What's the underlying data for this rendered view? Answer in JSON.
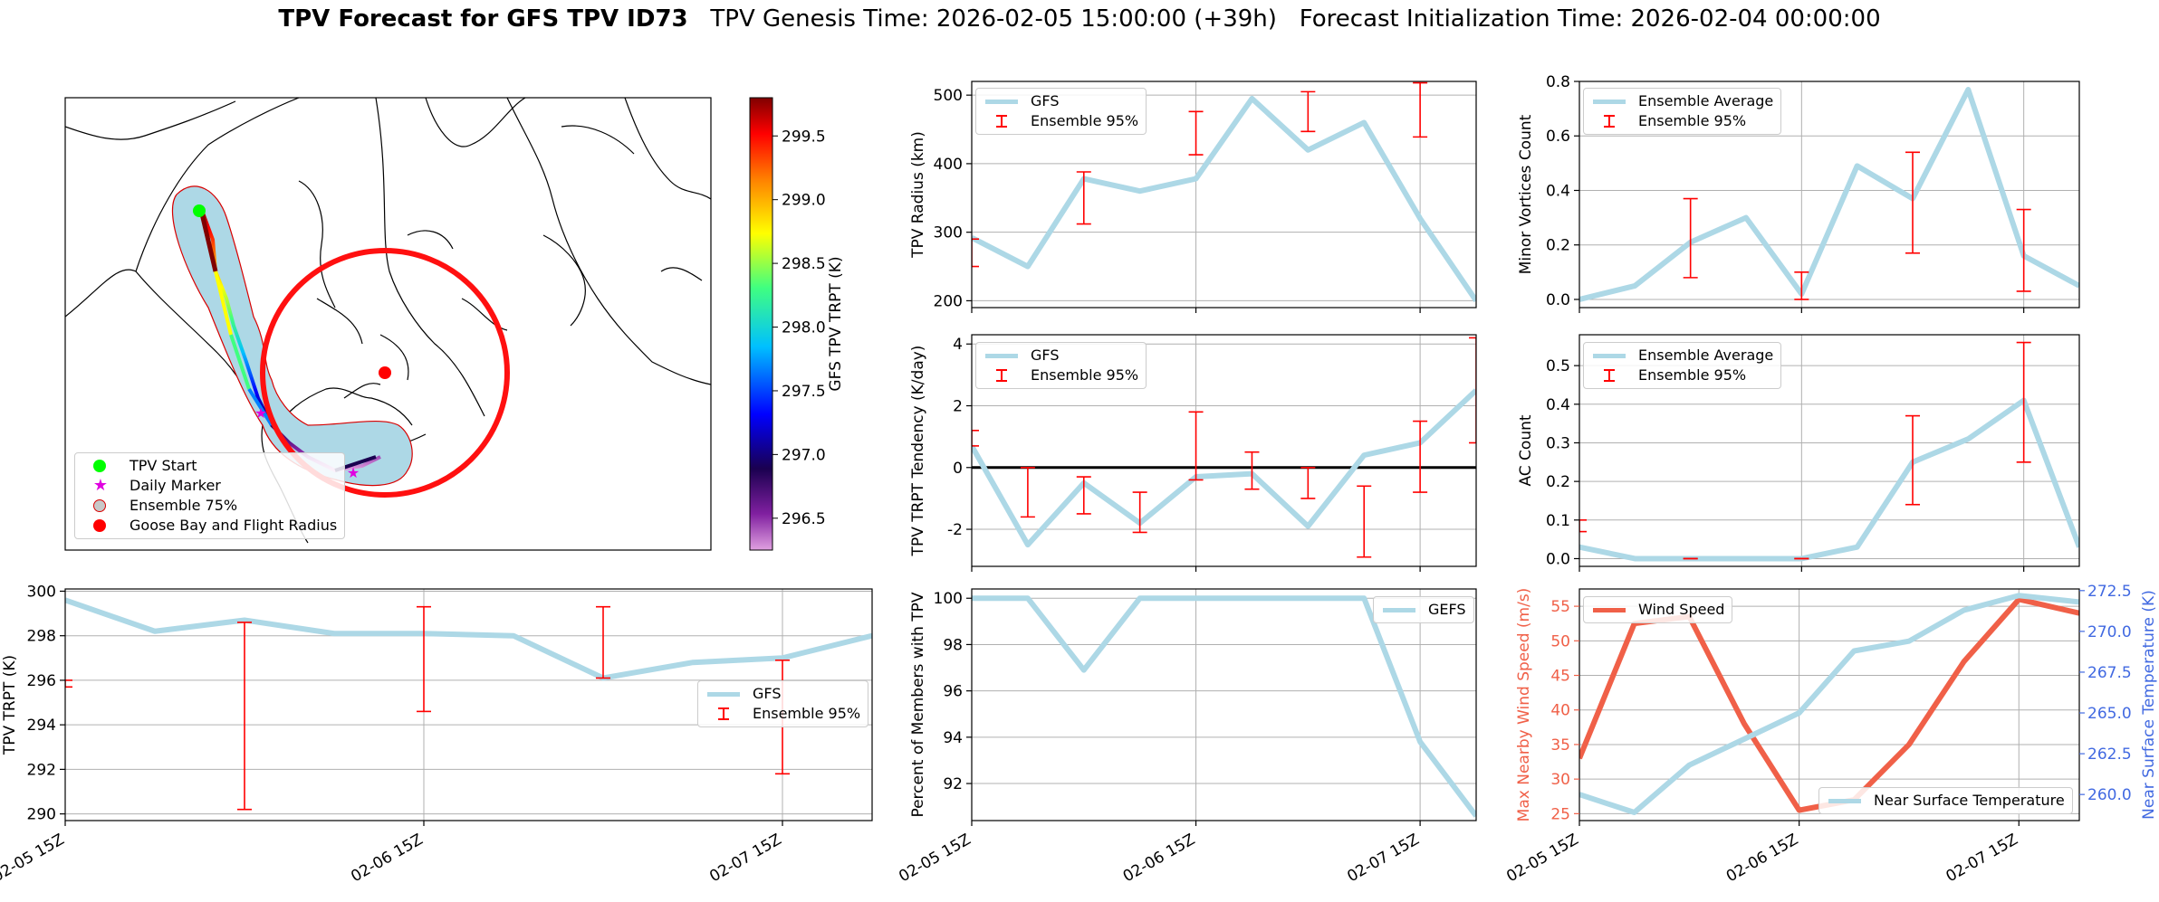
{
  "title": {
    "bold": "TPV Forecast for GFS TPV ID73",
    "genesis": "TPV Genesis Time: 2026-02-05 15:00:00 (+39h)",
    "init": "Forecast Initialization Time: 2026-02-04 00:00:00"
  },
  "colors": {
    "gfs": "#add8e6",
    "err": "#ff0000",
    "wind": "#f06048",
    "temp": "#add8e6",
    "temp_axis": "#4169e1"
  },
  "map": {
    "colorbar": {
      "label": "GFS TPV TRPT (K)",
      "ticks": [
        "296.5",
        "297.0",
        "297.5",
        "298.0",
        "298.5",
        "299.0",
        "299.5"
      ],
      "min": 296.25,
      "max": 299.8
    },
    "legend": [
      "TPV Start",
      "Daily Marker",
      "Ensemble 75%",
      "Goose Bay and Flight Radius"
    ]
  },
  "chart_data": [
    {
      "id": "radius",
      "type": "line",
      "ylabel": "TPV Radius (km)",
      "xlim": [
        0,
        9
      ],
      "ylim": [
        190,
        520
      ],
      "yticks": [
        200,
        300,
        400,
        500
      ],
      "xticks": [
        0,
        4,
        8
      ],
      "xticklabels": [],
      "series": [
        {
          "name": "GFS",
          "x": [
            0,
            1,
            2,
            3,
            4,
            5,
            6,
            7,
            8,
            9
          ],
          "y": [
            292,
            250,
            378,
            360,
            378,
            495,
            420,
            460,
            320,
            200
          ]
        }
      ],
      "errorbars": {
        "name": "Ensemble 95%",
        "x": [
          0,
          2,
          4,
          6,
          8
        ],
        "low": [
          250,
          312,
          413,
          447,
          439
        ],
        "high": [
          290,
          388,
          476,
          505,
          518
        ]
      },
      "legend": [
        "GFS",
        "Ensemble 95%"
      ]
    },
    {
      "id": "minor",
      "type": "line",
      "ylabel": "Minor Vortices Count",
      "xlim": [
        0,
        9
      ],
      "ylim": [
        -0.03,
        0.8
      ],
      "yticks": [
        0.0,
        0.2,
        0.4,
        0.6,
        0.8
      ],
      "xticks": [
        0,
        4,
        8
      ],
      "xticklabels": [],
      "series": [
        {
          "name": "Ensemble Average",
          "x": [
            0,
            1,
            2,
            3,
            4,
            5,
            6,
            7,
            8,
            9
          ],
          "y": [
            0.0,
            0.05,
            0.21,
            0.3,
            0.02,
            0.49,
            0.37,
            0.77,
            0.16,
            0.05
          ]
        }
      ],
      "errorbars": {
        "name": "Ensemble 95%",
        "x": [
          2,
          4,
          6,
          8
        ],
        "low": [
          0.08,
          0.0,
          0.17,
          0.03
        ],
        "high": [
          0.37,
          0.1,
          0.54,
          0.33
        ]
      },
      "legend": [
        "Ensemble Average",
        "Ensemble 95%"
      ]
    },
    {
      "id": "tendency",
      "type": "line",
      "ylabel": "TPV TRPT Tendency (K/day)",
      "xlim": [
        0,
        9
      ],
      "ylim": [
        -3.2,
        4.3
      ],
      "yticks": [
        -2,
        0,
        2,
        4
      ],
      "xticks": [
        0,
        4,
        8
      ],
      "xticklabels": [],
      "hline": 0,
      "series": [
        {
          "name": "GFS",
          "x": [
            0,
            1,
            2,
            3,
            4,
            5,
            6,
            7,
            8,
            9
          ],
          "y": [
            0.7,
            -2.5,
            -0.5,
            -1.8,
            -0.3,
            -0.2,
            -1.9,
            0.4,
            0.8,
            2.5
          ]
        }
      ],
      "errorbars": {
        "name": "Ensemble 95%",
        "x": [
          0,
          1,
          2,
          3,
          4,
          5,
          6,
          7,
          8,
          9
        ],
        "low": [
          0.7,
          -1.6,
          -1.5,
          -2.1,
          -0.4,
          -0.7,
          -1.0,
          -2.9,
          -0.8,
          0.8
        ],
        "high": [
          1.2,
          0.0,
          -0.3,
          -0.8,
          1.8,
          0.5,
          0.0,
          -0.6,
          1.5,
          4.2
        ]
      },
      "legend": [
        "GFS",
        "Ensemble 95%"
      ]
    },
    {
      "id": "ac",
      "type": "line",
      "ylabel": "AC Count",
      "xlim": [
        0,
        9
      ],
      "ylim": [
        -0.02,
        0.58
      ],
      "yticks": [
        0.0,
        0.1,
        0.2,
        0.3,
        0.4,
        0.5
      ],
      "xticks": [
        0,
        4,
        8
      ],
      "xticklabels": [],
      "series": [
        {
          "name": "Ensemble Average",
          "x": [
            0,
            1,
            2,
            3,
            4,
            5,
            6,
            7,
            8,
            9
          ],
          "y": [
            0.03,
            0.0,
            0.0,
            0.0,
            0.0,
            0.03,
            0.25,
            0.31,
            0.41,
            0.03
          ]
        }
      ],
      "errorbars": {
        "name": "Ensemble 95%",
        "x": [
          0,
          2,
          4,
          6,
          8
        ],
        "low": [
          0.07,
          0.0,
          0.0,
          0.14,
          0.25
        ],
        "high": [
          0.1,
          0.0,
          0.0,
          0.37,
          0.56
        ]
      },
      "legend": [
        "Ensemble Average",
        "Ensemble 95%"
      ]
    },
    {
      "id": "trpt",
      "type": "line",
      "ylabel": "TPV TRPT (K)",
      "xlim": [
        0,
        9
      ],
      "ylim": [
        289.7,
        300.1
      ],
      "yticks": [
        290,
        292,
        294,
        296,
        298,
        300
      ],
      "xticks": [
        0,
        4,
        8
      ],
      "xticklabels": [
        "02-05 15Z",
        "02-06 15Z",
        "02-07 15Z"
      ],
      "series": [
        {
          "name": "GFS",
          "x": [
            0,
            1,
            2,
            3,
            4,
            5,
            6,
            7,
            8,
            9
          ],
          "y": [
            299.6,
            298.2,
            298.7,
            298.1,
            298.1,
            298.0,
            296.1,
            296.8,
            297.0,
            298.0
          ]
        }
      ],
      "errorbars": {
        "name": "Ensemble 95%",
        "x": [
          0,
          2,
          4,
          6,
          8
        ],
        "low": [
          295.7,
          290.2,
          294.6,
          296.1,
          291.8
        ],
        "high": [
          296.0,
          298.6,
          299.3,
          299.3,
          296.9
        ]
      },
      "legend": [
        "GFS",
        "Ensemble 95%"
      ]
    },
    {
      "id": "percent",
      "type": "line",
      "ylabel": "Percent of Members with TPV",
      "xlim": [
        0,
        9
      ],
      "ylim": [
        90.4,
        100.4
      ],
      "yticks": [
        92,
        94,
        96,
        98,
        100
      ],
      "xticks": [
        0,
        4,
        8
      ],
      "xticklabels": [
        "02-05 15Z",
        "02-06 15Z",
        "02-07 15Z"
      ],
      "series": [
        {
          "name": "GEFS",
          "x": [
            0,
            1,
            2,
            3,
            4,
            5,
            6,
            7,
            8,
            9
          ],
          "y": [
            100,
            100,
            96.9,
            100,
            100,
            100,
            100,
            100,
            93.8,
            90.6
          ]
        }
      ],
      "legend": [
        "GEFS"
      ]
    },
    {
      "id": "wind",
      "type": "line",
      "ylabel": "Max Nearby Wind Speed (m/s)",
      "ylabel2": "Near Surface Temperature (K)",
      "xlim": [
        0,
        9.1
      ],
      "ylim": [
        24,
        57.5
      ],
      "ylim2": [
        258.4,
        272.6
      ],
      "yticks": [
        25,
        30,
        35,
        40,
        45,
        50,
        55
      ],
      "yticks2": [
        260.0,
        262.5,
        265.0,
        267.5,
        270.0,
        272.5
      ],
      "xticks": [
        0,
        4,
        8
      ],
      "xticklabels": [
        "02-05 15Z",
        "02-06 15Z",
        "02-07 15Z"
      ],
      "series": [
        {
          "name": "Wind Speed",
          "axis": "left",
          "x": [
            0,
            1,
            2,
            3,
            4,
            5,
            6,
            7,
            8,
            9.1
          ],
          "y": [
            33,
            52.5,
            53.5,
            38,
            25.5,
            27,
            35,
            47,
            56,
            54
          ]
        },
        {
          "name": "Near Surface Temperature",
          "axis": "right",
          "x": [
            0,
            1,
            2,
            3,
            4,
            5,
            6,
            7,
            8,
            9.1
          ],
          "y": [
            260.0,
            258.9,
            261.8,
            263.4,
            265.0,
            268.8,
            269.4,
            271.3,
            272.2,
            271.8
          ]
        }
      ],
      "legend": [
        "Wind Speed"
      ],
      "legend2": [
        "Near Surface Temperature"
      ]
    }
  ]
}
